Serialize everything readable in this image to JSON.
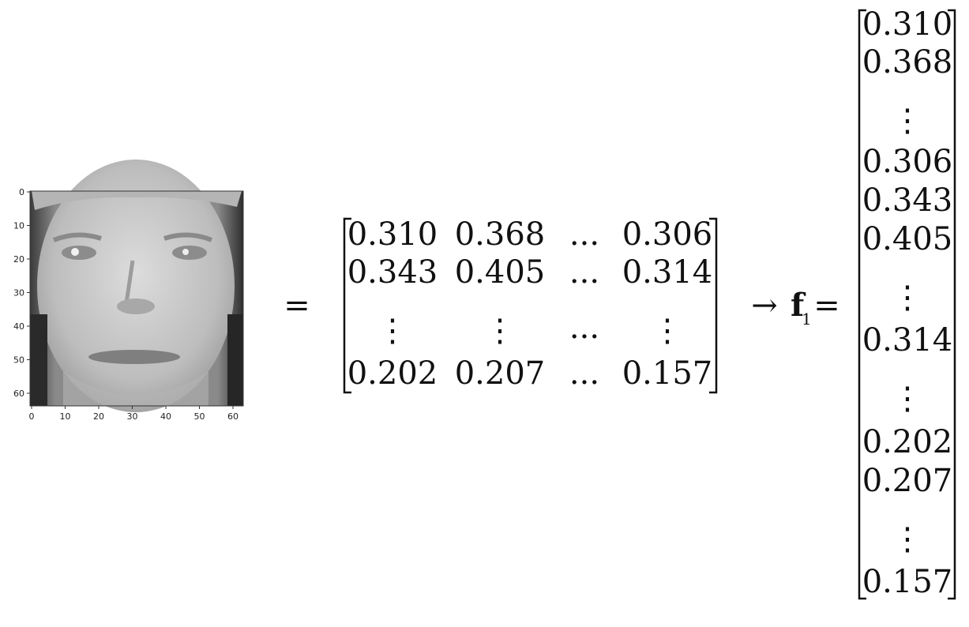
{
  "image_plot": {
    "y_ticks": [
      "0",
      "10",
      "20",
      "30",
      "40",
      "50",
      "60"
    ],
    "x_ticks": [
      "0",
      "10",
      "20",
      "30",
      "40",
      "50",
      "60"
    ]
  },
  "equals_sign": "=",
  "matrix": {
    "rows": [
      [
        "0.310",
        "0.368",
        "...",
        "0.306"
      ],
      [
        "0.343",
        "0.405",
        "...",
        "0.314"
      ],
      [
        "⋮",
        "⋮",
        "...",
        "⋮"
      ],
      [
        "0.202",
        "0.207",
        "...",
        "0.157"
      ]
    ]
  },
  "arrow": "→",
  "vector_symbol": "f",
  "vector_subscript": "1",
  "vector_equals": "=",
  "vector": {
    "entries": [
      "0.310",
      "0.368",
      "⋮",
      "0.306",
      "0.343",
      "0.405",
      "⋮",
      "0.314",
      "⋮",
      "0.202",
      "0.207",
      "⋮",
      "0.157"
    ]
  }
}
